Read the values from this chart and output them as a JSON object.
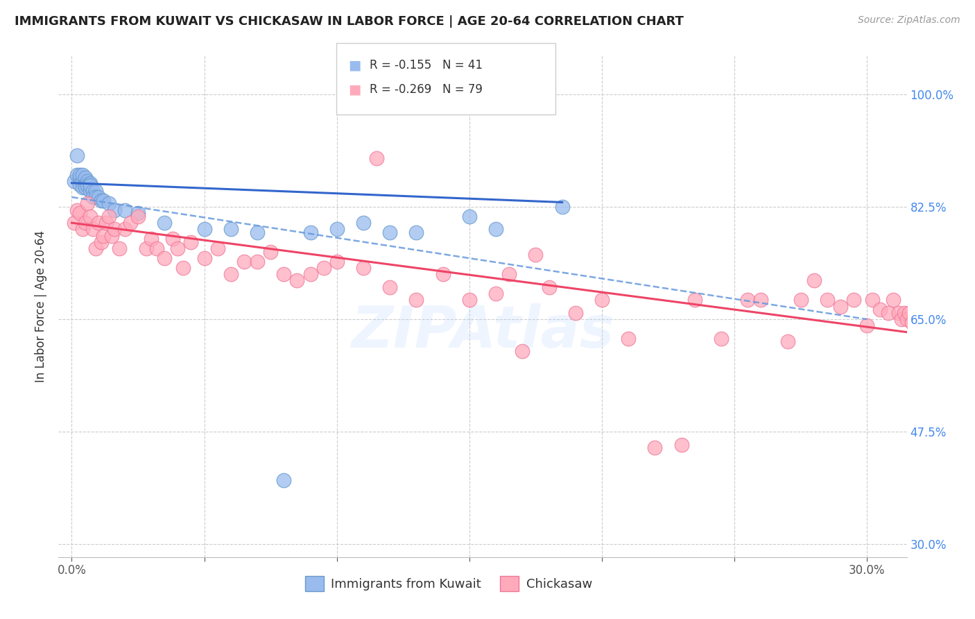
{
  "title": "IMMIGRANTS FROM KUWAIT VS CHICKASAW IN LABOR FORCE | AGE 20-64 CORRELATION CHART",
  "source": "Source: ZipAtlas.com",
  "ylabel": "In Labor Force | Age 20-64",
  "x_tick_positions": [
    0.0,
    0.05,
    0.1,
    0.15,
    0.2,
    0.25,
    0.3
  ],
  "x_tick_labels": [
    "0.0%",
    "",
    "",
    "",
    "",
    "",
    "30.0%"
  ],
  "y_tick_positions": [
    0.3,
    0.475,
    0.65,
    0.825,
    1.0
  ],
  "y_tick_labels": [
    "30.0%",
    "47.5%",
    "65.0%",
    "82.5%",
    "100.0%"
  ],
  "xlim": [
    -0.005,
    0.315
  ],
  "ylim": [
    0.28,
    1.06
  ],
  "blue_fill": "#99BBEE",
  "blue_edge": "#6699CC",
  "pink_fill": "#FFAABB",
  "pink_edge": "#EE7799",
  "trendline_blue_solid": "#3366CC",
  "trendline_blue_dashed": "#6699DD",
  "trendline_pink": "#EE4466",
  "grid_color": "#CCCCCC",
  "legend_R_blue": "-0.155",
  "legend_N_blue": "41",
  "legend_R_pink": "-0.269",
  "legend_N_pink": "79",
  "kuwait_x": [
    0.001,
    0.002,
    0.002,
    0.003,
    0.003,
    0.003,
    0.004,
    0.004,
    0.004,
    0.005,
    0.005,
    0.005,
    0.006,
    0.006,
    0.007,
    0.007,
    0.007,
    0.008,
    0.008,
    0.009,
    0.009,
    0.01,
    0.011,
    0.012,
    0.014,
    0.016,
    0.02,
    0.025,
    0.035,
    0.05,
    0.06,
    0.07,
    0.08,
    0.09,
    0.1,
    0.11,
    0.12,
    0.13,
    0.15,
    0.16,
    0.185
  ],
  "kuwait_y": [
    0.865,
    0.875,
    0.905,
    0.87,
    0.875,
    0.86,
    0.865,
    0.875,
    0.855,
    0.87,
    0.86,
    0.855,
    0.865,
    0.858,
    0.862,
    0.85,
    0.858,
    0.85,
    0.84,
    0.85,
    0.84,
    0.84,
    0.835,
    0.835,
    0.83,
    0.82,
    0.82,
    0.815,
    0.8,
    0.79,
    0.79,
    0.785,
    0.4,
    0.785,
    0.79,
    0.8,
    0.785,
    0.785,
    0.81,
    0.79,
    0.825
  ],
  "chickasaw_x": [
    0.001,
    0.002,
    0.003,
    0.004,
    0.005,
    0.006,
    0.007,
    0.008,
    0.009,
    0.01,
    0.011,
    0.012,
    0.013,
    0.014,
    0.015,
    0.016,
    0.018,
    0.02,
    0.022,
    0.025,
    0.028,
    0.03,
    0.032,
    0.035,
    0.038,
    0.04,
    0.042,
    0.045,
    0.05,
    0.055,
    0.06,
    0.065,
    0.07,
    0.075,
    0.08,
    0.085,
    0.09,
    0.095,
    0.1,
    0.11,
    0.115,
    0.12,
    0.13,
    0.14,
    0.15,
    0.16,
    0.165,
    0.17,
    0.175,
    0.18,
    0.19,
    0.2,
    0.21,
    0.22,
    0.23,
    0.235,
    0.245,
    0.255,
    0.26,
    0.27,
    0.275,
    0.28,
    0.285,
    0.29,
    0.295,
    0.3,
    0.302,
    0.305,
    0.308,
    0.31,
    0.312,
    0.313,
    0.314,
    0.315,
    0.316,
    0.317,
    0.318,
    0.319,
    0.32
  ],
  "chickasaw_y": [
    0.8,
    0.82,
    0.815,
    0.79,
    0.8,
    0.83,
    0.81,
    0.79,
    0.76,
    0.8,
    0.77,
    0.78,
    0.8,
    0.81,
    0.78,
    0.79,
    0.76,
    0.79,
    0.8,
    0.81,
    0.76,
    0.775,
    0.76,
    0.745,
    0.775,
    0.76,
    0.73,
    0.77,
    0.745,
    0.76,
    0.72,
    0.74,
    0.74,
    0.755,
    0.72,
    0.71,
    0.72,
    0.73,
    0.74,
    0.73,
    0.9,
    0.7,
    0.68,
    0.72,
    0.68,
    0.69,
    0.72,
    0.6,
    0.75,
    0.7,
    0.66,
    0.68,
    0.62,
    0.45,
    0.455,
    0.68,
    0.62,
    0.68,
    0.68,
    0.615,
    0.68,
    0.71,
    0.68,
    0.67,
    0.68,
    0.64,
    0.68,
    0.665,
    0.66,
    0.68,
    0.66,
    0.65,
    0.66,
    0.65,
    0.66,
    0.645,
    0.655,
    0.64,
    0.65
  ],
  "trendline_blue_x0": 0.0,
  "trendline_blue_x1": 0.185,
  "trendline_blue_y0": 0.862,
  "trendline_blue_y1": 0.832,
  "trendline_dashed_x0": 0.0,
  "trendline_dashed_x1": 0.3,
  "trendline_dashed_y0": 0.84,
  "trendline_dashed_y1": 0.65,
  "trendline_pink_x0": 0.0,
  "trendline_pink_x1": 0.315,
  "trendline_pink_y0": 0.8,
  "trendline_pink_y1": 0.63
}
